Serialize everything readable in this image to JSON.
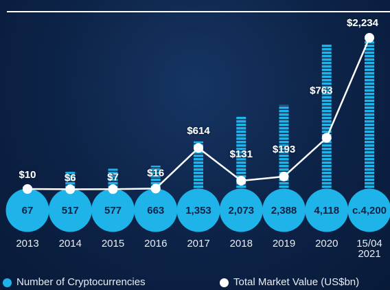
{
  "chart_data": {
    "type": "bar",
    "categories": [
      "2013",
      "2014",
      "2015",
      "2016",
      "2017",
      "2018",
      "2019",
      "2020",
      "15/04 2021"
    ],
    "series": [
      {
        "name": "Number of Cryptocurrencies",
        "color": "#1eb4ea",
        "type": "bar",
        "values": [
          67,
          517,
          577,
          663,
          1353,
          2073,
          2388,
          4118,
          4200
        ],
        "value_labels": [
          "67",
          "517",
          "577",
          "663",
          "1,353",
          "2,073",
          "2,388",
          "4,118",
          "c.4,200"
        ]
      },
      {
        "name": "Total Market Value (US$bn)",
        "color": "#ffffff",
        "type": "line",
        "values": [
          10,
          6,
          7,
          16,
          614,
          131,
          193,
          763,
          2234
        ],
        "value_labels": [
          "$10",
          "$6",
          "$7",
          "$16",
          "$614",
          "$131",
          "$193",
          "$763",
          "$2,234"
        ]
      }
    ]
  }
}
